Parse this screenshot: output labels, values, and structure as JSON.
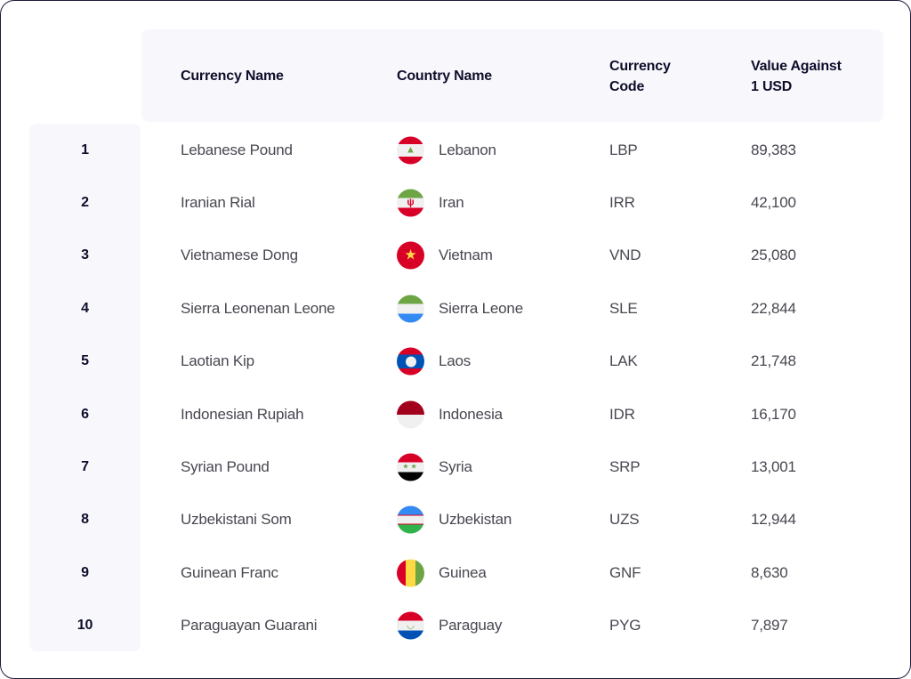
{
  "headers": {
    "rank": "",
    "currency": "Currency Name",
    "country": "Country Name",
    "code_line1": "Currency",
    "code_line2": "Code",
    "value_line1": "Value Against",
    "value_line2": "1 USD"
  },
  "rows": [
    {
      "rank": "1",
      "currency": "Lebanese Pound",
      "country": "Lebanon",
      "flag": "lebanon-flag-icon",
      "flag_class": "f-lb",
      "glyph": "▲",
      "code": "LBP",
      "value": "89,383"
    },
    {
      "rank": "2",
      "currency": "Iranian Rial",
      "country": "Iran",
      "flag": "iran-flag-icon",
      "flag_class": "f-ir",
      "glyph": "ψ",
      "code": "IRR",
      "value": "42,100"
    },
    {
      "rank": "3",
      "currency": "Vietnamese Dong",
      "country": "Vietnam",
      "flag": "vietnam-flag-icon",
      "flag_class": "f-vn",
      "glyph": "★",
      "code": "VND",
      "value": "25,080"
    },
    {
      "rank": "4",
      "currency": "Sierra Leonenan Leone",
      "country": "Sierra Leone",
      "flag": "sierra-leone-flag-icon",
      "flag_class": "f-sl",
      "glyph": "",
      "code": "SLE",
      "value": "22,844"
    },
    {
      "rank": "5",
      "currency": "Laotian Kip",
      "country": "Laos",
      "flag": "laos-flag-icon",
      "flag_class": "f-la",
      "glyph": "",
      "code": "LAK",
      "value": "21,748"
    },
    {
      "rank": "6",
      "currency": "Indonesian Rupiah",
      "country": "Indonesia",
      "flag": "indonesia-flag-icon",
      "flag_class": "f-id",
      "glyph": "",
      "code": "IDR",
      "value": "16,170"
    },
    {
      "rank": "7",
      "currency": "Syrian Pound",
      "country": "Syria",
      "flag": "syria-flag-icon",
      "flag_class": "f-sy",
      "glyph": "★★",
      "code": "SRP",
      "value": "13,001"
    },
    {
      "rank": "8",
      "currency": "Uzbekistani Som",
      "country": "Uzbekistan",
      "flag": "uzbekistan-flag-icon",
      "flag_class": "f-uz",
      "glyph": "",
      "code": "UZS",
      "value": "12,944"
    },
    {
      "rank": "9",
      "currency": "Guinean Franc",
      "country": "Guinea",
      "flag": "guinea-flag-icon",
      "flag_class": "f-gn",
      "glyph": "",
      "code": "GNF",
      "value": "8,630"
    },
    {
      "rank": "10",
      "currency": "Paraguayan Guarani",
      "country": "Paraguay",
      "flag": "paraguay-flag-icon",
      "flag_class": "f-py",
      "glyph": "◡",
      "code": "PYG",
      "value": "7,897"
    }
  ]
}
